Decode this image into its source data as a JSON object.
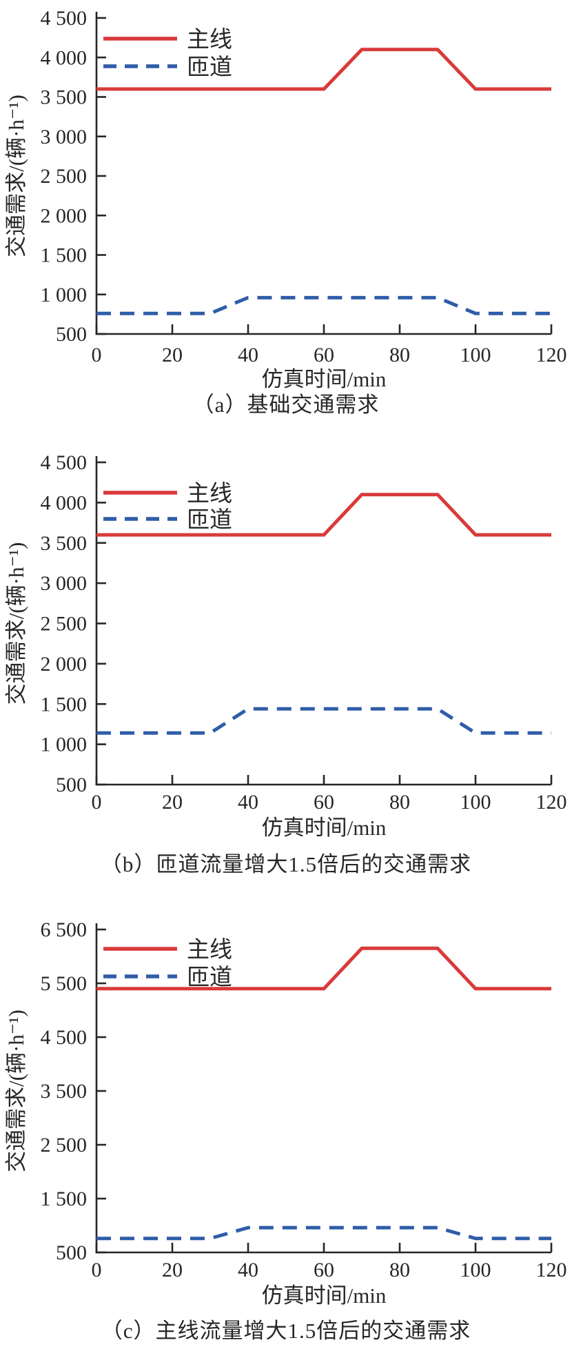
{
  "figure": {
    "xlabel": "仿真时间/min",
    "ylabel": "交通需求/(辆·h⁻¹)",
    "colors": {
      "main_line": "#d93a3a",
      "ramp": "#2f5da8",
      "axis": "#262626"
    },
    "legend": [
      {
        "key": "main-line",
        "label": "主线",
        "style": "solid",
        "color": "#d93a3a"
      },
      {
        "key": "ramp",
        "label": "匝道",
        "style": "dashed",
        "color": "#2f5da8"
      }
    ]
  },
  "chart_data": [
    {
      "type": "line",
      "caption": "（a）基础交通需求",
      "xlabel": "仿真时间/min",
      "ylabel": "交通需求/(辆·h⁻¹)",
      "xlim": [
        0,
        120
      ],
      "ylim": [
        500,
        4500
      ],
      "grid": false,
      "legend_position": "top-left",
      "xticks": [
        {
          "v": 0,
          "label": "0"
        },
        {
          "v": 20,
          "label": "20"
        },
        {
          "v": 40,
          "label": "40"
        },
        {
          "v": 60,
          "label": "60"
        },
        {
          "v": 80,
          "label": "80"
        },
        {
          "v": 100,
          "label": "100"
        },
        {
          "v": 120,
          "label": "120"
        }
      ],
      "yticks": [
        {
          "v": 500,
          "label": "500"
        },
        {
          "v": 1000,
          "label": "1 000"
        },
        {
          "v": 1500,
          "label": "1 500"
        },
        {
          "v": 2000,
          "label": "2 000"
        },
        {
          "v": 2500,
          "label": "2 500"
        },
        {
          "v": 3000,
          "label": "3 000"
        },
        {
          "v": 3500,
          "label": "3 500"
        },
        {
          "v": 4000,
          "label": "4 000"
        },
        {
          "v": 4500,
          "label": "4 500"
        }
      ],
      "series": [
        {
          "key": "main-line",
          "name": "主线",
          "color": "#d93a3a",
          "style": "solid",
          "points": [
            [
              0,
              3600
            ],
            [
              60,
              3600
            ],
            [
              70,
              4100
            ],
            [
              90,
              4100
            ],
            [
              100,
              3600
            ],
            [
              120,
              3600
            ]
          ]
        },
        {
          "key": "ramp",
          "name": "匝道",
          "color": "#2f5da8",
          "style": "dashed",
          "points": [
            [
              0,
              760
            ],
            [
              30,
              760
            ],
            [
              40,
              960
            ],
            [
              90,
              960
            ],
            [
              100,
              760
            ],
            [
              120,
              760
            ]
          ]
        }
      ]
    },
    {
      "type": "line",
      "caption": "（b）匝道流量增大1.5倍后的交通需求",
      "xlabel": "仿真时间/min",
      "ylabel": "交通需求/(辆·h⁻¹)",
      "xlim": [
        0,
        120
      ],
      "ylim": [
        500,
        4500
      ],
      "grid": false,
      "legend_position": "top-left",
      "xticks": [
        {
          "v": 0,
          "label": "0"
        },
        {
          "v": 20,
          "label": "20"
        },
        {
          "v": 40,
          "label": "40"
        },
        {
          "v": 60,
          "label": "60"
        },
        {
          "v": 80,
          "label": "80"
        },
        {
          "v": 100,
          "label": "100"
        },
        {
          "v": 120,
          "label": "120"
        }
      ],
      "yticks": [
        {
          "v": 500,
          "label": "500"
        },
        {
          "v": 1000,
          "label": "1 000"
        },
        {
          "v": 1500,
          "label": "1 500"
        },
        {
          "v": 2000,
          "label": "2 000"
        },
        {
          "v": 2500,
          "label": "2 500"
        },
        {
          "v": 3000,
          "label": "3 000"
        },
        {
          "v": 3500,
          "label": "3 500"
        },
        {
          "v": 4000,
          "label": "4 000"
        },
        {
          "v": 4500,
          "label": "4 500"
        }
      ],
      "series": [
        {
          "key": "main-line",
          "name": "主线",
          "color": "#d93a3a",
          "style": "solid",
          "points": [
            [
              0,
              3600
            ],
            [
              60,
              3600
            ],
            [
              70,
              4100
            ],
            [
              90,
              4100
            ],
            [
              100,
              3600
            ],
            [
              120,
              3600
            ]
          ]
        },
        {
          "key": "ramp",
          "name": "匝道",
          "color": "#2f5da8",
          "style": "dashed",
          "points": [
            [
              0,
              1140
            ],
            [
              30,
              1140
            ],
            [
              40,
              1440
            ],
            [
              90,
              1440
            ],
            [
              100,
              1140
            ],
            [
              120,
              1140
            ]
          ]
        }
      ]
    },
    {
      "type": "line",
      "caption": "（c）主线流量增大1.5倍后的交通需求",
      "xlabel": "仿真时间/min",
      "ylabel": "交通需求/(辆·h⁻¹)",
      "xlim": [
        0,
        120
      ],
      "ylim": [
        500,
        6500
      ],
      "grid": false,
      "legend_position": "top-left",
      "xticks": [
        {
          "v": 0,
          "label": "0"
        },
        {
          "v": 20,
          "label": "20"
        },
        {
          "v": 40,
          "label": "40"
        },
        {
          "v": 60,
          "label": "60"
        },
        {
          "v": 80,
          "label": "80"
        },
        {
          "v": 100,
          "label": "100"
        },
        {
          "v": 120,
          "label": "120"
        }
      ],
      "yticks": [
        {
          "v": 500,
          "label": "500"
        },
        {
          "v": 1500,
          "label": "1 500"
        },
        {
          "v": 2500,
          "label": "2 500"
        },
        {
          "v": 3500,
          "label": "3 500"
        },
        {
          "v": 4500,
          "label": "4 500"
        },
        {
          "v": 5500,
          "label": "5 500"
        },
        {
          "v": 6500,
          "label": "6 500"
        }
      ],
      "series": [
        {
          "key": "main-line",
          "name": "主线",
          "color": "#d93a3a",
          "style": "solid",
          "points": [
            [
              0,
              5400
            ],
            [
              60,
              5400
            ],
            [
              70,
              6150
            ],
            [
              90,
              6150
            ],
            [
              100,
              5400
            ],
            [
              120,
              5400
            ]
          ]
        },
        {
          "key": "ramp",
          "name": "匝道",
          "color": "#2f5da8",
          "style": "dashed",
          "points": [
            [
              0,
              760
            ],
            [
              30,
              760
            ],
            [
              40,
              960
            ],
            [
              90,
              960
            ],
            [
              100,
              760
            ],
            [
              120,
              760
            ]
          ]
        }
      ]
    }
  ]
}
